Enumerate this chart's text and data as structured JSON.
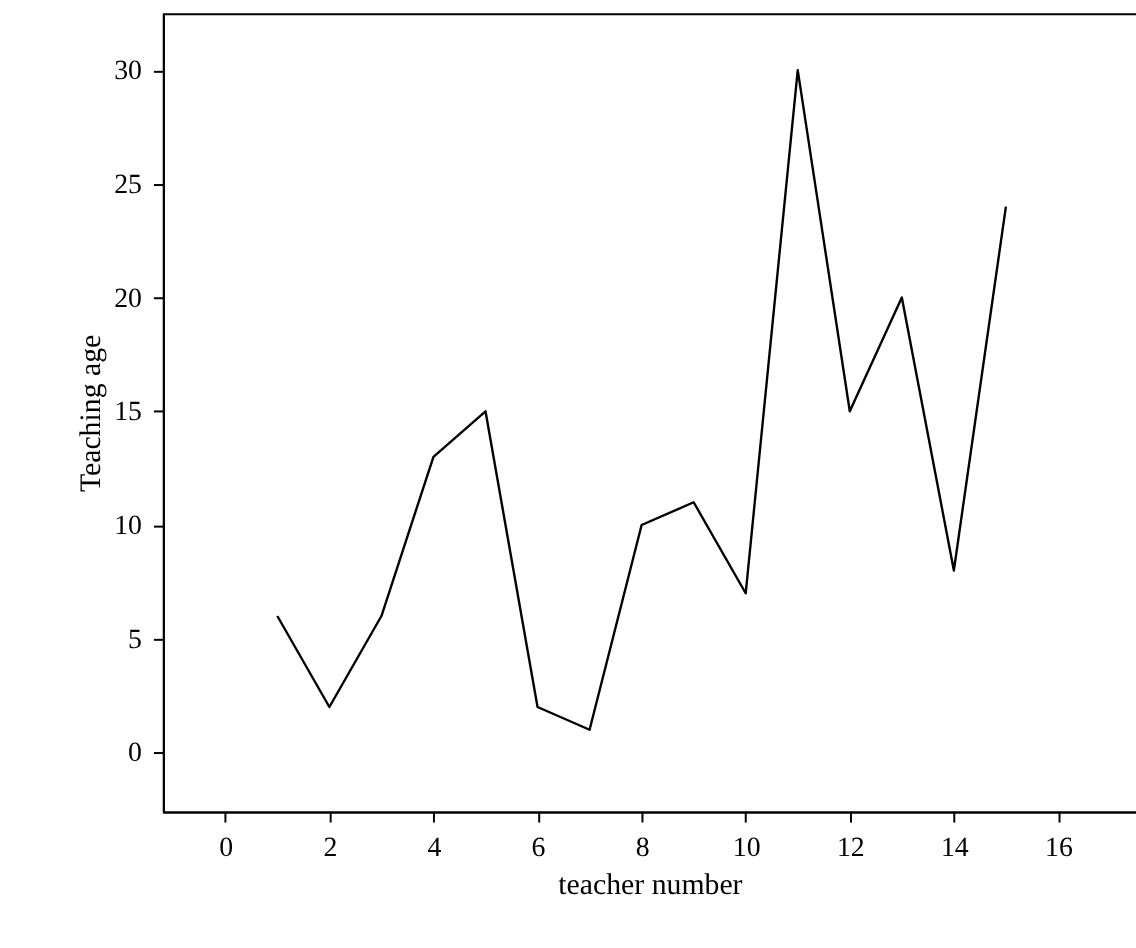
{
  "chart_data": {
    "type": "line",
    "xlabel": "teacher number",
    "ylabel": "Teaching age",
    "x": [
      1,
      2,
      3,
      4,
      5,
      6,
      7,
      8,
      9,
      10,
      11,
      12,
      13,
      14,
      15
    ],
    "series": [
      {
        "color": "#000000",
        "values": [
          6,
          2,
          6,
          13,
          15,
          2,
          1,
          10,
          11,
          7,
          30,
          15,
          20,
          8,
          24
        ]
      }
    ],
    "xlim": [
      -1.2,
      17.5
    ],
    "xticks": [
      0,
      2,
      4,
      6,
      8,
      10,
      12,
      14,
      16
    ],
    "ylim": [
      -2.6,
      32.5
    ],
    "yticks": [
      0,
      5,
      10,
      15,
      20,
      25,
      30
    ],
    "grid": false,
    "marker": "none",
    "line_style": "solid"
  }
}
